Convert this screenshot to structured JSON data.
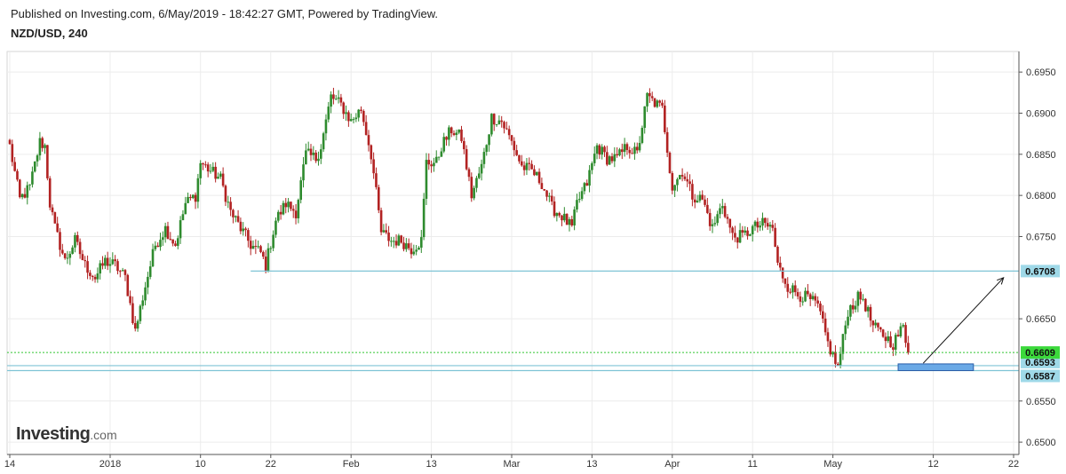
{
  "header": {
    "published": "Published on Investing.com, 6/May/2019 - 18:42:27 GMT, Powered by TradingView.",
    "symbol": "NZD/USD, 240"
  },
  "watermark": {
    "brand": "Investing",
    "suffix": ".com"
  },
  "colors": {
    "up": "#2e8b2e",
    "down": "#b22222",
    "grid": "#ececec",
    "hline": "#7fc4d6",
    "price_line": "#31c531",
    "price_label": "#3cd93c",
    "marker_label": "#9fd9e8",
    "zone": "#6aa9e6",
    "arrow": "#111111"
  },
  "chart_data": {
    "type": "candlestick",
    "title": "NZD/USD, 240",
    "x_axis": {
      "tick_labels": [
        "14",
        "2018",
        "10",
        "22",
        "Feb",
        "13",
        "Mar",
        "13",
        "Apr",
        "11",
        "May",
        "12",
        "22"
      ],
      "tick_index": [
        0,
        20,
        38,
        52,
        68,
        84,
        100,
        116,
        132,
        148,
        164,
        184,
        200
      ]
    },
    "y_axis": {
      "range": [
        0.6485,
        0.6975
      ],
      "ticks": [
        "0.6950",
        "0.6900",
        "0.6850",
        "0.6800",
        "0.6750",
        "0.6650",
        "0.6550",
        "0.6500"
      ],
      "grid": true
    },
    "close_path": [
      [
        0,
        0.686
      ],
      [
        2,
        0.6795
      ],
      [
        4,
        0.681
      ],
      [
        6,
        0.6865
      ],
      [
        7,
        0.686
      ],
      [
        8,
        0.679
      ],
      [
        9,
        0.676
      ],
      [
        11,
        0.672
      ],
      [
        13,
        0.6745
      ],
      [
        15,
        0.6715
      ],
      [
        17,
        0.67
      ],
      [
        19,
        0.672
      ],
      [
        21,
        0.6715
      ],
      [
        23,
        0.67
      ],
      [
        25,
        0.6635
      ],
      [
        27,
        0.669
      ],
      [
        29,
        0.674
      ],
      [
        31,
        0.676
      ],
      [
        33,
        0.674
      ],
      [
        35,
        0.679
      ],
      [
        37,
        0.68
      ],
      [
        38,
        0.684
      ],
      [
        40,
        0.683
      ],
      [
        42,
        0.682
      ],
      [
        44,
        0.678
      ],
      [
        46,
        0.676
      ],
      [
        48,
        0.674
      ],
      [
        50,
        0.673
      ],
      [
        51,
        0.6715
      ],
      [
        53,
        0.677
      ],
      [
        55,
        0.679
      ],
      [
        57,
        0.678
      ],
      [
        59,
        0.685
      ],
      [
        61,
        0.6845
      ],
      [
        62,
        0.686
      ],
      [
        64,
        0.692
      ],
      [
        66,
        0.691
      ],
      [
        68,
        0.689
      ],
      [
        70,
        0.6905
      ],
      [
        72,
        0.685
      ],
      [
        74,
        0.6755
      ],
      [
        76,
        0.6745
      ],
      [
        78,
        0.6745
      ],
      [
        80,
        0.6735
      ],
      [
        82,
        0.6745
      ],
      [
        83,
        0.684
      ],
      [
        85,
        0.684
      ],
      [
        86,
        0.686
      ],
      [
        88,
        0.688
      ],
      [
        90,
        0.687
      ],
      [
        92,
        0.68
      ],
      [
        94,
        0.6835
      ],
      [
        96,
        0.6895
      ],
      [
        98,
        0.689
      ],
      [
        100,
        0.6865
      ],
      [
        102,
        0.6835
      ],
      [
        104,
        0.683
      ],
      [
        106,
        0.6815
      ],
      [
        108,
        0.6785
      ],
      [
        110,
        0.6775
      ],
      [
        112,
        0.676
      ],
      [
        113,
        0.679
      ],
      [
        115,
        0.6815
      ],
      [
        117,
        0.686
      ],
      [
        119,
        0.6845
      ],
      [
        121,
        0.6845
      ],
      [
        123,
        0.686
      ],
      [
        125,
        0.685
      ],
      [
        127,
        0.692
      ],
      [
        128,
        0.6915
      ],
      [
        130,
        0.6905
      ],
      [
        132,
        0.681
      ],
      [
        134,
        0.683
      ],
      [
        136,
        0.68
      ],
      [
        138,
        0.6795
      ],
      [
        140,
        0.676
      ],
      [
        142,
        0.679
      ],
      [
        144,
        0.675
      ],
      [
        146,
        0.675
      ],
      [
        148,
        0.676
      ],
      [
        150,
        0.6765
      ],
      [
        152,
        0.676
      ],
      [
        153,
        0.6715
      ],
      [
        155,
        0.669
      ],
      [
        157,
        0.668
      ],
      [
        159,
        0.6675
      ],
      [
        161,
        0.6665
      ],
      [
        163,
        0.662
      ],
      [
        165,
        0.659
      ],
      [
        167,
        0.666
      ],
      [
        169,
        0.6675
      ],
      [
        170,
        0.6675
      ],
      [
        172,
        0.664
      ],
      [
        174,
        0.663
      ],
      [
        176,
        0.662
      ],
      [
        178,
        0.664
      ],
      [
        179,
        0.6609
      ]
    ],
    "horizontal_lines": [
      {
        "price": 0.6708,
        "label": "0.6708"
      },
      {
        "price": 0.6593,
        "label": "0.6593"
      },
      {
        "price": 0.6587,
        "label": "0.6587"
      }
    ],
    "last_price": {
      "price": 0.6609,
      "label": "0.6609"
    },
    "support_zone": {
      "x_range": [
        177,
        192
      ],
      "price_range": [
        0.6587,
        0.6593
      ]
    },
    "arrow": {
      "from": [
        182,
        0.6596
      ],
      "to": [
        198,
        0.67
      ]
    }
  }
}
